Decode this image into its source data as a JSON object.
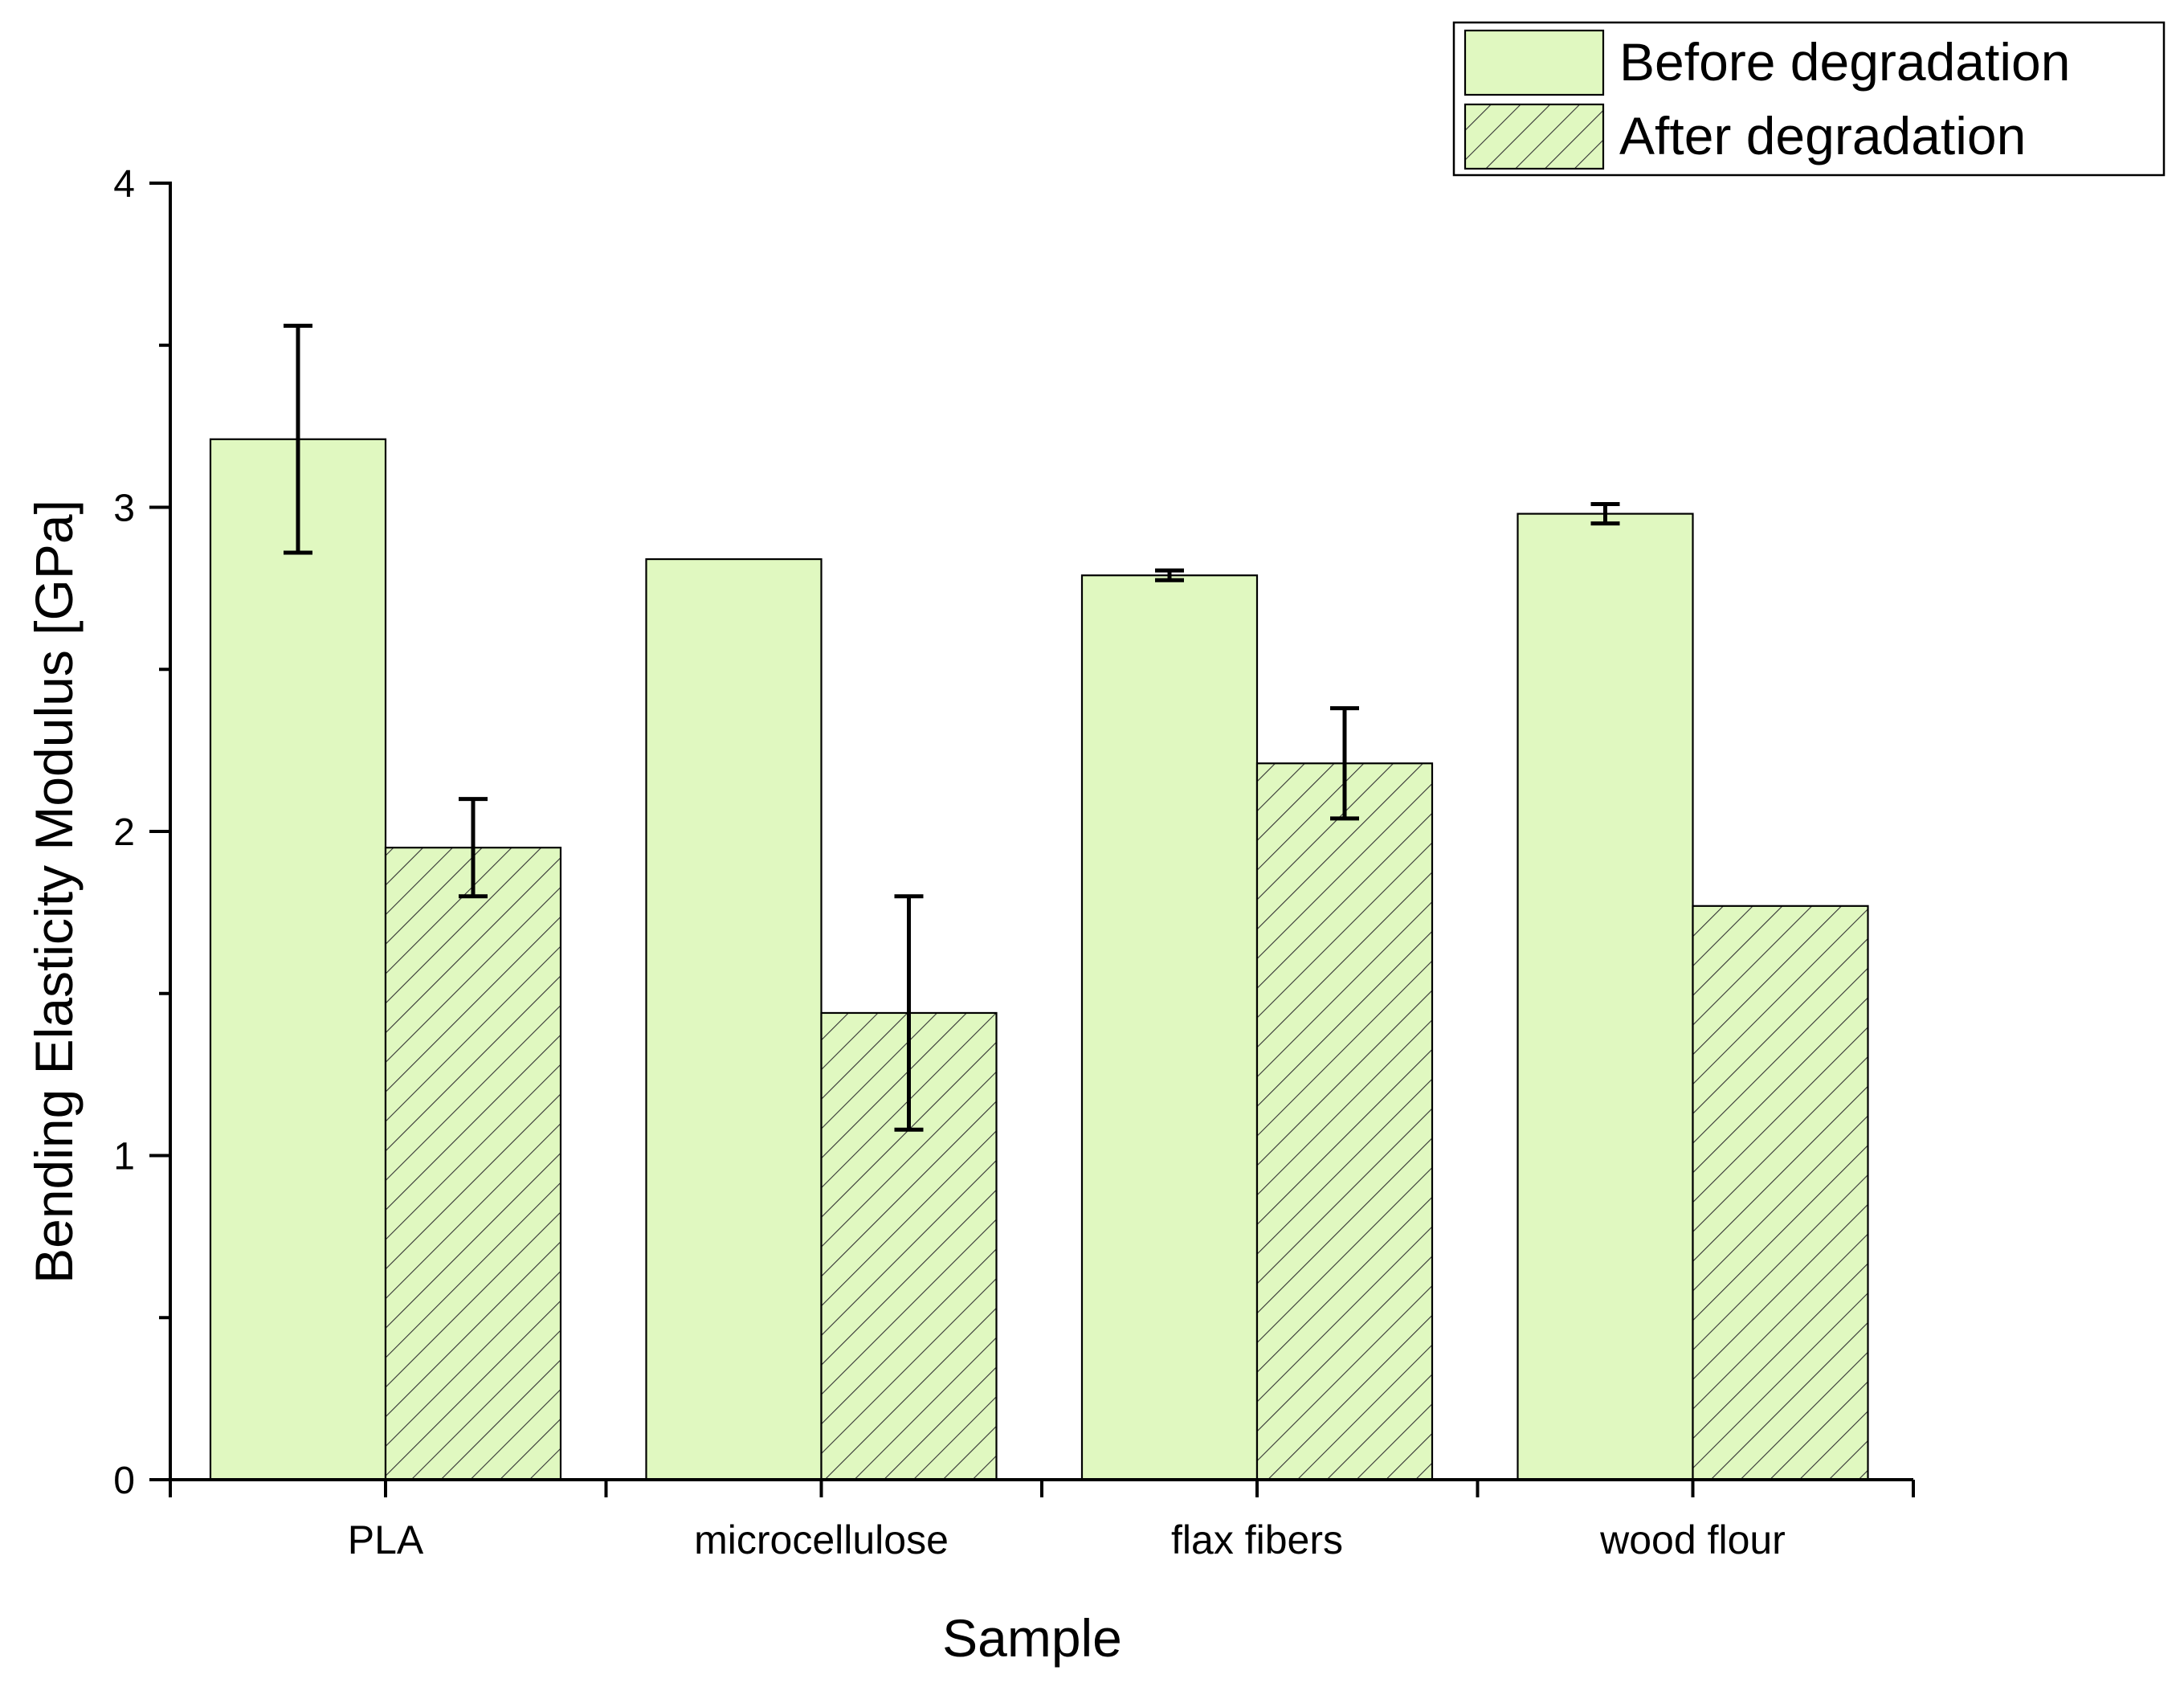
{
  "chart_data": {
    "type": "bar",
    "xlabel": "Sample",
    "ylabel": "Bending Elasticity Modulus [GPa]",
    "ylim": [
      0,
      4
    ],
    "yticks": [
      0,
      1,
      2,
      3,
      4
    ],
    "y_minor_step": 0.5,
    "categories": [
      "PLA",
      "microcellulose",
      "flax fibers",
      "wood flour"
    ],
    "series": [
      {
        "name": "Before degradation",
        "values": [
          3.21,
          2.84,
          2.79,
          2.98
        ],
        "errors": [
          0.35,
          null,
          0.015,
          0.03
        ],
        "fill": "#e0f8c0",
        "hatched": false
      },
      {
        "name": "After degradation",
        "values": [
          1.95,
          1.44,
          2.21,
          1.77
        ],
        "errors": [
          0.15,
          0.36,
          0.17,
          null
        ],
        "fill": "#e0f8c0",
        "hatched": true
      }
    ],
    "legend_position": "top-right",
    "grid": false
  }
}
